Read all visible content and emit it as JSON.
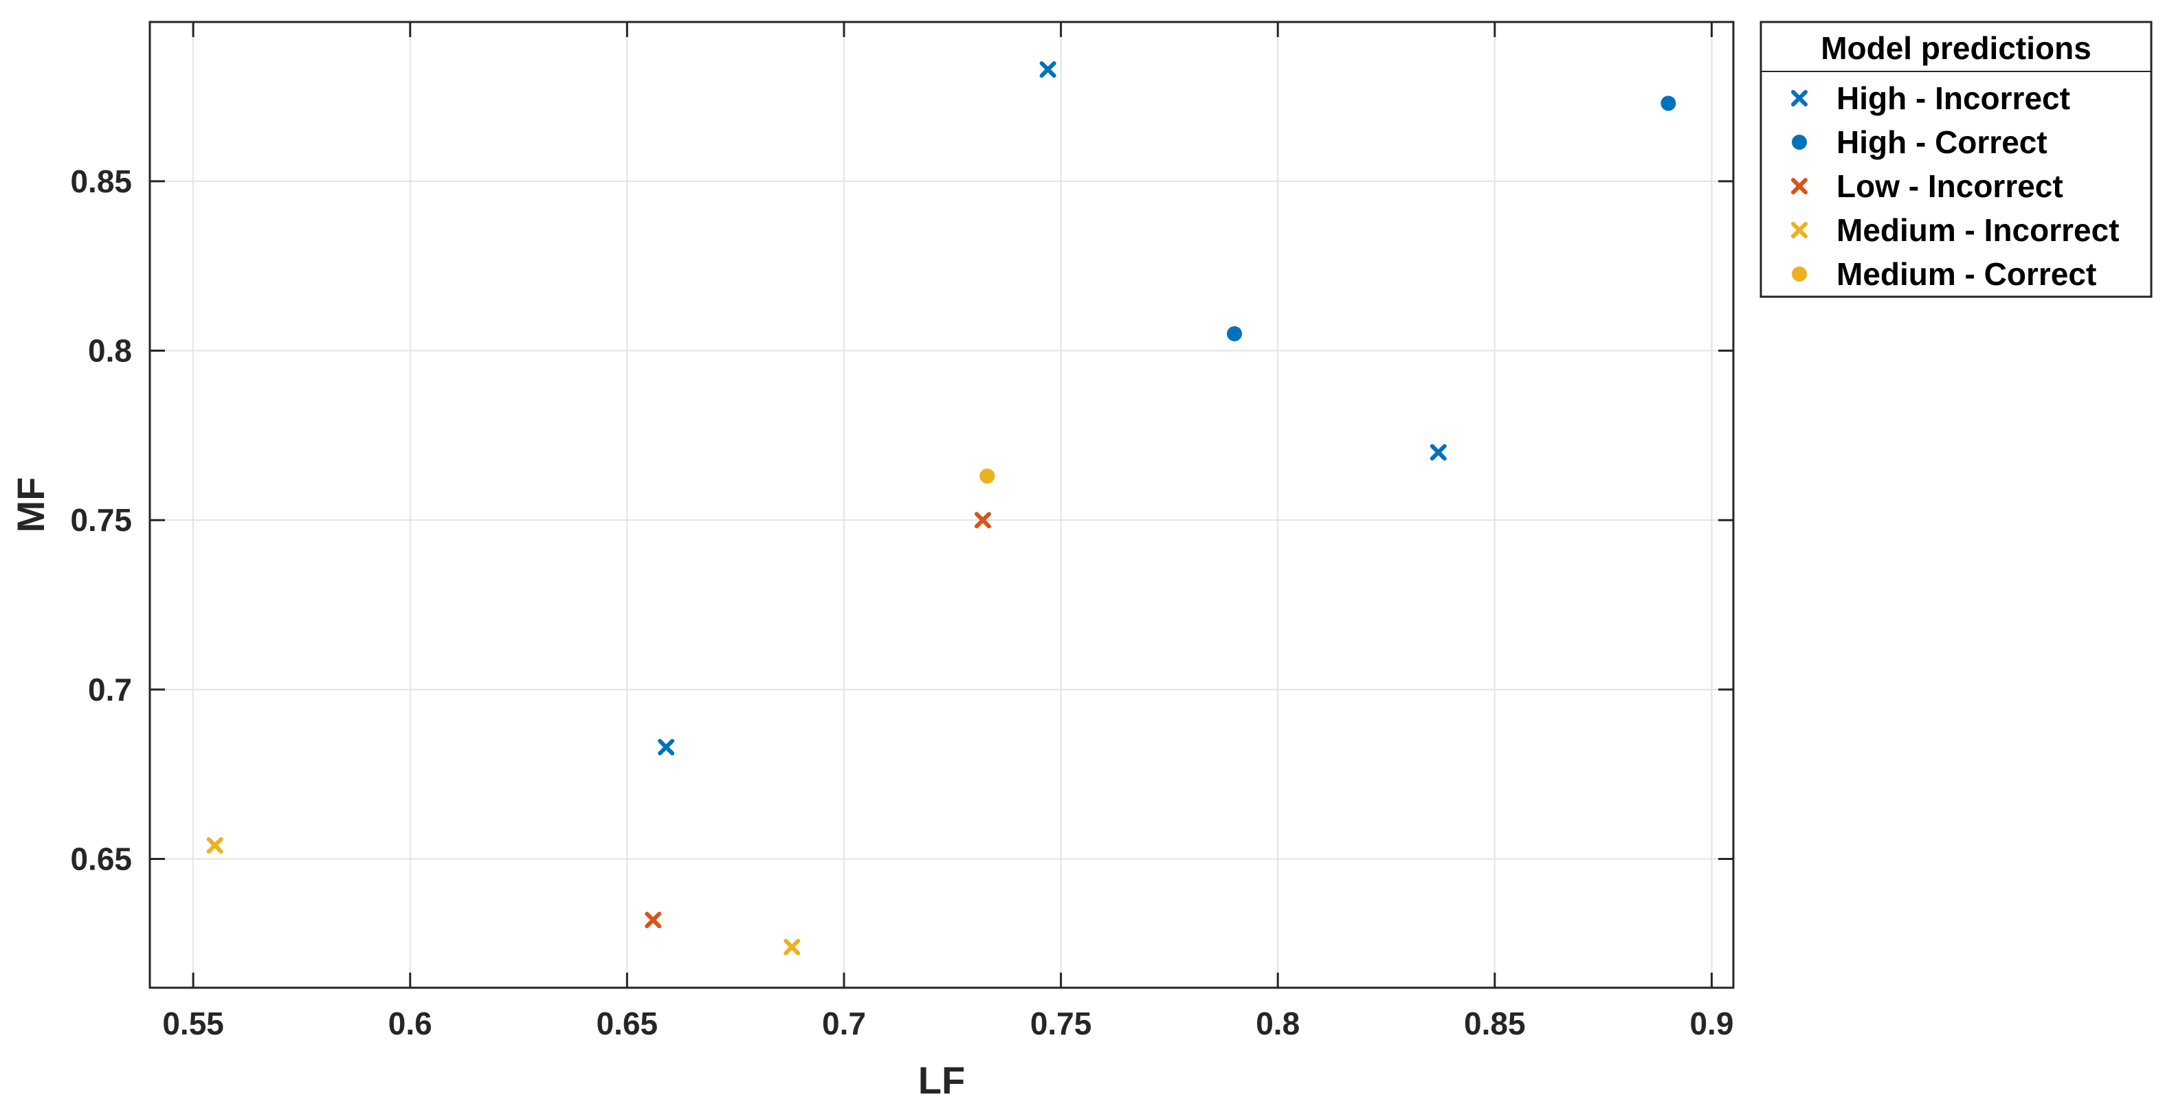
{
  "chart_data": {
    "type": "scatter",
    "xlabel": "LF",
    "ylabel": "MF",
    "xlim": [
      0.54,
      0.905
    ],
    "ylim": [
      0.612,
      0.897
    ],
    "xticks": [
      0.55,
      0.6,
      0.65,
      0.7,
      0.75,
      0.8,
      0.85,
      0.9
    ],
    "xtick_labels": [
      "0.55",
      "0.6",
      "0.65",
      "0.7",
      "0.75",
      "0.8",
      "0.85",
      "0.9"
    ],
    "yticks": [
      0.65,
      0.7,
      0.75,
      0.8,
      0.85
    ],
    "ytick_labels": [
      "0.65",
      "0.7",
      "0.75",
      "0.8",
      "0.85"
    ],
    "grid": true,
    "legend": {
      "title": "Model predictions",
      "placement": "outside-top-right"
    },
    "series": [
      {
        "name": "High - Incorrect",
        "marker": "x",
        "color": "#0072BD",
        "points": [
          [
            0.747,
            0.883
          ],
          [
            0.837,
            0.77
          ],
          [
            0.659,
            0.683
          ]
        ]
      },
      {
        "name": "High - Correct",
        "marker": "o",
        "color": "#0072BD",
        "points": [
          [
            0.89,
            0.873
          ],
          [
            0.79,
            0.805
          ]
        ]
      },
      {
        "name": "Low - Incorrect",
        "marker": "x",
        "color": "#D95319",
        "points": [
          [
            0.732,
            0.75
          ],
          [
            0.656,
            0.632
          ]
        ]
      },
      {
        "name": "Medium - Incorrect",
        "marker": "x",
        "color": "#EDB120",
        "points": [
          [
            0.555,
            0.654
          ],
          [
            0.688,
            0.624
          ]
        ]
      },
      {
        "name": "Medium - Correct",
        "marker": "o",
        "color": "#EDB120",
        "points": [
          [
            0.733,
            0.763
          ]
        ]
      }
    ]
  }
}
